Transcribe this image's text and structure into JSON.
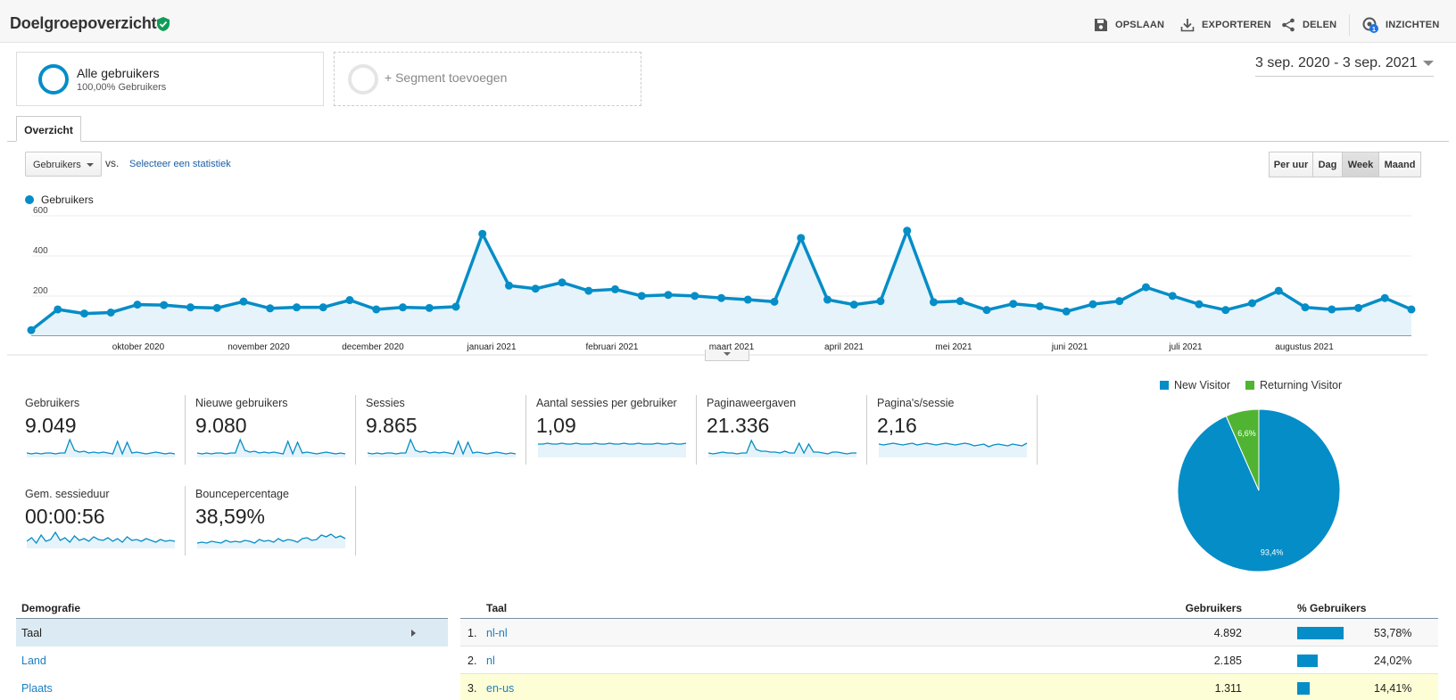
{
  "header": {
    "title": "Doelgroepoverzicht",
    "actions": [
      {
        "label": "OPSLAAN",
        "icon": "save-icon"
      },
      {
        "label": "EXPORTEREN",
        "icon": "download-icon"
      },
      {
        "label": "DELEN",
        "icon": "share-icon"
      },
      {
        "label": "INZICHTEN",
        "icon": "insights-icon",
        "badge": "1"
      }
    ]
  },
  "segments": {
    "active": {
      "name": "Alle gebruikers",
      "sub": "100,00% Gebruikers"
    },
    "add_label": "+ Segment toevoegen"
  },
  "date_range": "3 sep. 2020 - 3 sep. 2021",
  "tabs": [
    {
      "label": "Overzicht"
    }
  ],
  "controls": {
    "metric": "Gebruikers",
    "vs": "vs.",
    "select_stat": "Selecteer een statistiek",
    "granularity": [
      "Per uur",
      "Dag",
      "Week",
      "Maand"
    ],
    "granularity_active": "Week"
  },
  "chart_data": {
    "type": "line",
    "series": [
      {
        "name": "Gebruikers",
        "color": "#058dc7",
        "values": [
          25,
          125,
          105,
          110,
          148,
          146,
          135,
          132,
          163,
          130,
          135,
          135,
          170,
          125,
          135,
          132,
          138,
          490,
          240,
          225,
          255,
          215,
          222,
          190,
          195,
          190,
          180,
          172,
          162,
          470,
          172,
          148,
          165,
          505,
          160,
          165,
          122,
          152,
          140,
          115,
          150,
          165,
          232,
          190,
          150,
          122,
          155,
          215,
          135,
          125,
          132,
          180,
          125
        ]
      }
    ],
    "ylim": [
      0,
      600
    ],
    "yticks": [
      "200",
      "400",
      "600"
    ],
    "x_labels": [
      "oktober 2020",
      "november 2020",
      "december 2020",
      "januari 2021",
      "februari 2021",
      "maart 2021",
      "april 2021",
      "mei 2021",
      "juni 2021",
      "juli 2021",
      "augustus 2021"
    ],
    "area_fill": true
  },
  "metrics": [
    {
      "label": "Gebruikers",
      "value": "9.049"
    },
    {
      "label": "Nieuwe gebruikers",
      "value": "9.080"
    },
    {
      "label": "Sessies",
      "value": "9.865"
    },
    {
      "label": "Aantal sessies per gebruiker",
      "value": "1,09"
    },
    {
      "label": "Paginaweergaven",
      "value": "21.336"
    },
    {
      "label": "Pagina's/sessie",
      "value": "2,16"
    },
    {
      "label": "Gem. sessieduur",
      "value": "00:00:56"
    },
    {
      "label": "Bouncepercentage",
      "value": "38,59%"
    }
  ],
  "pie": {
    "legend": [
      {
        "label": "New Visitor",
        "color": "#058dc7"
      },
      {
        "label": "Returning Visitor",
        "color": "#50b432"
      }
    ],
    "slices": [
      {
        "label": "93,4%",
        "value": 93.4,
        "color": "#058dc7"
      },
      {
        "label": "6,6%",
        "value": 6.6,
        "color": "#50b432"
      }
    ]
  },
  "demografie": {
    "title": "Demografie",
    "items": [
      {
        "label": "Taal"
      },
      {
        "label": "Land"
      },
      {
        "label": "Plaats"
      }
    ]
  },
  "language_table": {
    "headers": {
      "name": "Taal",
      "users": "Gebruikers",
      "pct": "% Gebruikers"
    },
    "rows": [
      {
        "num": "1.",
        "name": "nl-nl",
        "users": "4.892",
        "pct": "53,78%",
        "share": 53.78
      },
      {
        "num": "2.",
        "name": "nl",
        "users": "2.185",
        "pct": "24,02%",
        "share": 24.02
      },
      {
        "num": "3.",
        "name": "en-us",
        "users": "1.311",
        "pct": "14,41%",
        "share": 14.41
      }
    ]
  },
  "colors": {
    "accent": "#058dc7",
    "returning": "#50b432",
    "highlight_row": "#fefed6",
    "link": "#1a7fc1"
  }
}
